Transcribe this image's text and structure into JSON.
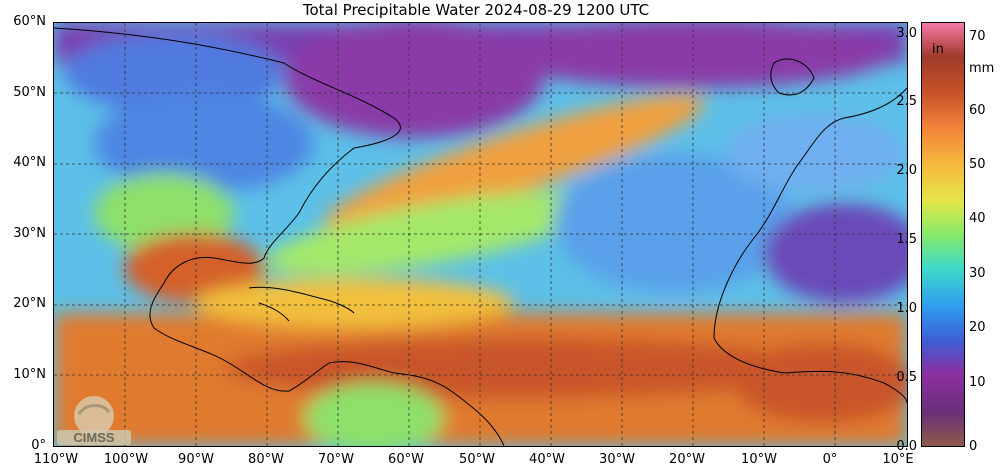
{
  "title": "Total Precipitable Water  2024-08-29 1200 UTC",
  "lat_labels": [
    "60°N",
    "50°N",
    "40°N",
    "30°N",
    "20°N",
    "10°N",
    "0°"
  ],
  "lon_labels": [
    "110°W",
    "100°W",
    "90°W",
    "80°W",
    "70°W",
    "60°W",
    "50°W",
    "40°W",
    "30°W",
    "20°W",
    "10°W",
    "0°",
    "10°E"
  ],
  "colorbar": {
    "unit_in": "in",
    "unit_mm": "mm",
    "ticks_in": [
      "3.0",
      "2.5",
      "2.0",
      "1.5",
      "1.0",
      "0.5",
      "0.0"
    ],
    "ticks_mm": [
      "70",
      "60",
      "50",
      "40",
      "30",
      "20",
      "10",
      "0"
    ],
    "colors": [
      "#8e5a4a",
      "#6a2f7a",
      "#8b2fa0",
      "#3e5fd6",
      "#2f9df0",
      "#3ed9c8",
      "#86ea6a",
      "#e6e64a",
      "#f5b63c",
      "#f2843a",
      "#c8552a",
      "#a03a2a",
      "#f47aa6"
    ]
  },
  "logo": {
    "text": "CIMSS"
  },
  "colors": {
    "ocean_moist": "#e07a2e",
    "dry_air": "#8a3aa8",
    "mid": "#6ed68a"
  }
}
